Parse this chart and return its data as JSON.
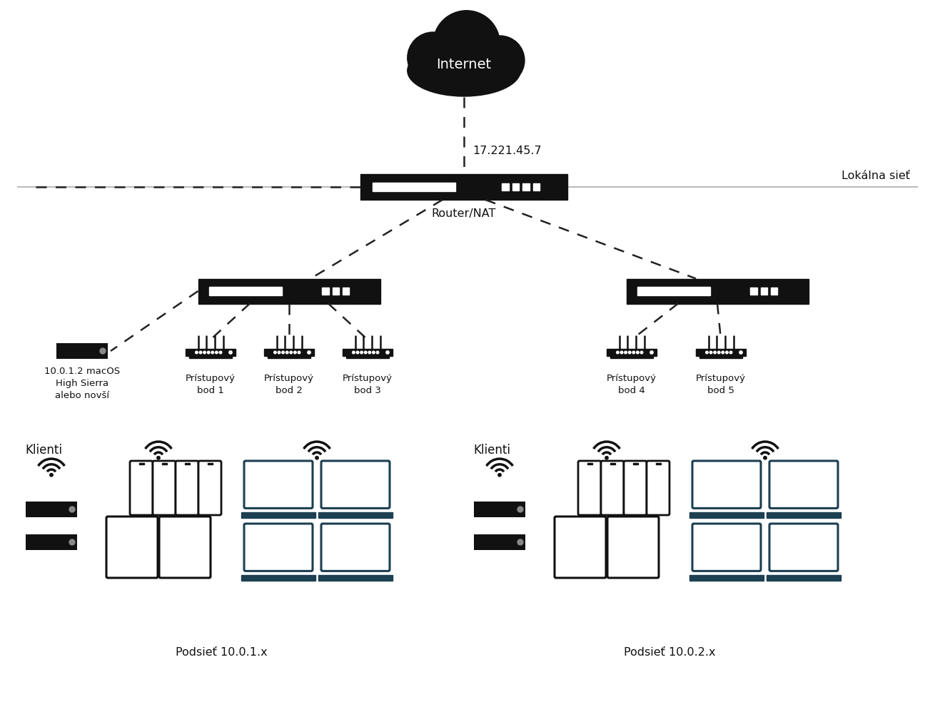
{
  "bg_color": "#ffffff",
  "text_color": "#111111",
  "device_color": "#111111",
  "line_color": "#111111",
  "teal_color": "#1c3f52",
  "gray_line": "#aaaaaa",
  "ip_label": "17.221.45.7",
  "cloud_label": "Internet",
  "router_label": "Router/NAT",
  "local_net_label": "Lokálna sieť",
  "mac_label": "10.0.1.2 macOS\nHigh Sierra\nalebo novší",
  "ap_labels": [
    "Prístupový\nbod 1",
    "Prístupový\nbod 2",
    "Prístupový\nbod 3",
    "Prístupový\nbod 4",
    "Prístupový\nbod 5"
  ],
  "clients_label": "Klienti",
  "subnet1_label": "Podsieť 10.0.1.x",
  "subnet2_label": "Podsieť 10.0.2.x"
}
